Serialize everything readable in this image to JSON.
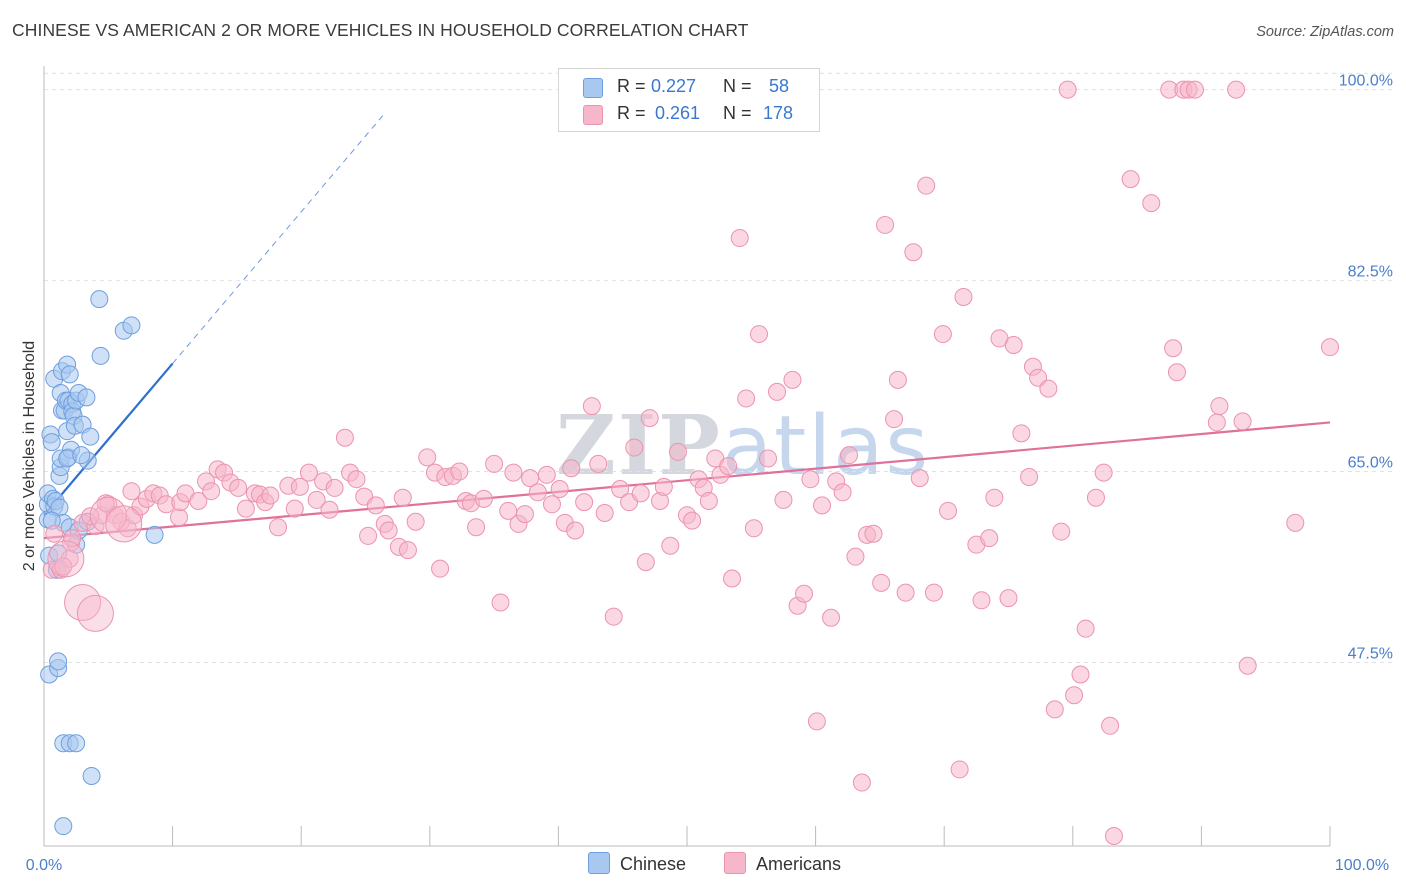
{
  "title": "CHINESE VS AMERICAN 2 OR MORE VEHICLES IN HOUSEHOLD CORRELATION CHART",
  "source": "Source: ZipAtlas.com",
  "watermark": {
    "zip": "ZIP",
    "atlas": "atlas"
  },
  "legend": {
    "rows": [
      {
        "r_label": "R =",
        "r_value": "0.227",
        "n_label": "N =",
        "n_value": "58",
        "color": "#a9c8f0"
      },
      {
        "r_label": "R =",
        "r_value": "0.261",
        "n_label": "N =",
        "n_value": "178",
        "color": "#f6b7cb"
      }
    ]
  },
  "bottom_legend": [
    {
      "label": "Chinese",
      "color": "#a9c8f0"
    },
    {
      "label": "Americans",
      "color": "#f6b7cb"
    }
  ],
  "chart_data": {
    "type": "scatter",
    "title": "CHINESE VS AMERICAN 2 OR MORE VEHICLES IN HOUSEHOLD CORRELATION CHART",
    "xlabel": "",
    "ylabel": "2 or more Vehicles in Household",
    "xlim": [
      0,
      100
    ],
    "ylim": [
      31.6,
      101.8
    ],
    "x_tick_labels": [
      "0.0%",
      "100.0%"
    ],
    "y_ticks": [
      47.5,
      65.0,
      82.5,
      100.0
    ],
    "y_tick_labels": [
      "47.5%",
      "65.0%",
      "82.5%",
      "100.0%"
    ],
    "grid": "horizontal dashed",
    "legend_position": "top-center",
    "series": [
      {
        "name": "Chinese",
        "color": "#a9c8f0",
        "edge": "#6e9fdf",
        "trend_color": "#2f6fce",
        "trend": {
          "x0": 0.0,
          "y0": 61.0,
          "x1": 10.0,
          "y1": 74.9,
          "dashed_to_x": 26.5
        },
        "points": [
          [
            0.3,
            62
          ],
          [
            0.3,
            60.6
          ],
          [
            0.3,
            63
          ],
          [
            0.4,
            57.3
          ],
          [
            0.4,
            46.4
          ],
          [
            0.5,
            68.4
          ],
          [
            0.6,
            67.7
          ],
          [
            0.7,
            62.5
          ],
          [
            0.8,
            61.8
          ],
          [
            0.8,
            73.5
          ],
          [
            0.9,
            62.3
          ],
          [
            1.0,
            56
          ],
          [
            1.1,
            57.5
          ],
          [
            1.1,
            47
          ],
          [
            1.1,
            47.6
          ],
          [
            1.2,
            61.7
          ],
          [
            1.2,
            64.6
          ],
          [
            1.3,
            72.2
          ],
          [
            1.3,
            65.4
          ],
          [
            1.3,
            66.2
          ],
          [
            1.4,
            70.6
          ],
          [
            1.4,
            74.2
          ],
          [
            1.5,
            40.1
          ],
          [
            1.5,
            32.5
          ],
          [
            1.5,
            60.3
          ],
          [
            1.6,
            70.6
          ],
          [
            1.7,
            71.5
          ],
          [
            1.8,
            68.7
          ],
          [
            1.8,
            74.8
          ],
          [
            1.9,
            66.3
          ],
          [
            1.9,
            71.5
          ],
          [
            2.0,
            40.1
          ],
          [
            2.0,
            59.9
          ],
          [
            2.0,
            73.9
          ],
          [
            2.1,
            67.0
          ],
          [
            2.2,
            71.2
          ],
          [
            2.2,
            70.5
          ],
          [
            2.3,
            70.1
          ],
          [
            2.4,
            69.2
          ],
          [
            2.5,
            71.5
          ],
          [
            2.5,
            40.1
          ],
          [
            2.5,
            58.3
          ],
          [
            2.7,
            59.6
          ],
          [
            2.7,
            72.2
          ],
          [
            3.0,
            69.3
          ],
          [
            3.3,
            71.8
          ],
          [
            3.4,
            66.0
          ],
          [
            3.4,
            60.4
          ],
          [
            3.6,
            68.2
          ],
          [
            3.7,
            37.1
          ],
          [
            4.3,
            80.8
          ],
          [
            4.4,
            75.6
          ],
          [
            6.2,
            77.9
          ],
          [
            6.8,
            78.4
          ],
          [
            8.6,
            59.2
          ],
          [
            1.8,
            66.2
          ],
          [
            0.6,
            60.5
          ],
          [
            2.9,
            66.5
          ]
        ]
      },
      {
        "name": "Americans",
        "color": "#f6b7cb",
        "edge": "#ec93ae",
        "trend_color": "#e0719a",
        "trend": {
          "x0": 0.0,
          "y0": 58.9,
          "x1": 100.0,
          "y1": 69.5
        },
        "points": [
          [
            0.6,
            56
          ],
          [
            1.3,
            56
          ],
          [
            2.0,
            57
          ],
          [
            2.1,
            58.5
          ],
          [
            3,
            60.3
          ],
          [
            4,
            60
          ],
          [
            4.5,
            61
          ],
          [
            5,
            62
          ],
          [
            5.5,
            61
          ],
          [
            6,
            60.4
          ],
          [
            6.5,
            59.8
          ],
          [
            7,
            61
          ],
          [
            7.5,
            61.8
          ],
          [
            8,
            62.5
          ],
          [
            8.5,
            63
          ],
          [
            9,
            62.8
          ],
          [
            9.5,
            62
          ],
          [
            10.5,
            60.8
          ],
          [
            10.6,
            62.2
          ],
          [
            11,
            63
          ],
          [
            12,
            62.3
          ],
          [
            12.6,
            64.1
          ],
          [
            13,
            63.2
          ],
          [
            13.5,
            65.2
          ],
          [
            14,
            64.9
          ],
          [
            14.5,
            64
          ],
          [
            15.1,
            63.5
          ],
          [
            15.7,
            61.6
          ],
          [
            16.4,
            63
          ],
          [
            16.8,
            62.9
          ],
          [
            17.2,
            62.2
          ],
          [
            17.6,
            62.8
          ],
          [
            18.2,
            59.9
          ],
          [
            19,
            63.7
          ],
          [
            19.5,
            61.6
          ],
          [
            19.9,
            63.6
          ],
          [
            20.6,
            64.9
          ],
          [
            21.2,
            62.4
          ],
          [
            21.7,
            64.1
          ],
          [
            22.2,
            61.5
          ],
          [
            22.6,
            63.5
          ],
          [
            23.4,
            68.1
          ],
          [
            23.8,
            64.9
          ],
          [
            24.3,
            64.3
          ],
          [
            24.9,
            62.7
          ],
          [
            25.2,
            59.1
          ],
          [
            25.8,
            61.9
          ],
          [
            26.5,
            60.2
          ],
          [
            26.8,
            59.6
          ],
          [
            27.6,
            58.1
          ],
          [
            27.9,
            62.6
          ],
          [
            28.3,
            57.8
          ],
          [
            28.9,
            60.4
          ],
          [
            29.8,
            66.3
          ],
          [
            30.4,
            64.9
          ],
          [
            30.8,
            56.1
          ],
          [
            31.2,
            64.5
          ],
          [
            31.8,
            64.6
          ],
          [
            32.3,
            65.0
          ],
          [
            32.8,
            62.3
          ],
          [
            33.2,
            62.1
          ],
          [
            33.6,
            59.9
          ],
          [
            34.2,
            62.5
          ],
          [
            35.0,
            65.7
          ],
          [
            35.5,
            53.0
          ],
          [
            36.1,
            61.4
          ],
          [
            36.5,
            64.9
          ],
          [
            36.9,
            60.2
          ],
          [
            37.4,
            61.1
          ],
          [
            37.8,
            64.4
          ],
          [
            38.4,
            63.1
          ],
          [
            39.1,
            64.7
          ],
          [
            39.5,
            62.0
          ],
          [
            40.1,
            63.4
          ],
          [
            40.5,
            60.3
          ],
          [
            41.0,
            65.3
          ],
          [
            41.3,
            59.6
          ],
          [
            42.0,
            62.2
          ],
          [
            42.6,
            71.0
          ],
          [
            43.1,
            65.7
          ],
          [
            43.6,
            61.2
          ],
          [
            44.3,
            51.7
          ],
          [
            44.8,
            63.4
          ],
          [
            45.5,
            62.2
          ],
          [
            45.9,
            67.2
          ],
          [
            46.4,
            63.0
          ],
          [
            46.8,
            56.7
          ],
          [
            47.1,
            69.9
          ],
          [
            47.9,
            62.3
          ],
          [
            48.2,
            63.6
          ],
          [
            48.7,
            58.2
          ],
          [
            49.3,
            66.8
          ],
          [
            50.0,
            61.0
          ],
          [
            50.4,
            60.5
          ],
          [
            50.9,
            64.3
          ],
          [
            51.3,
            63.5
          ],
          [
            51.7,
            62.3
          ],
          [
            52.2,
            66.2
          ],
          [
            52.6,
            64.7
          ],
          [
            53.2,
            65.5
          ],
          [
            53.5,
            55.2
          ],
          [
            54.1,
            86.4
          ],
          [
            54.6,
            71.7
          ],
          [
            55.2,
            59.8
          ],
          [
            55.6,
            77.6
          ],
          [
            56.3,
            66.2
          ],
          [
            57.0,
            72.3
          ],
          [
            57.5,
            62.4
          ],
          [
            58.2,
            73.4
          ],
          [
            58.6,
            52.7
          ],
          [
            59.1,
            53.8
          ],
          [
            59.6,
            64.3
          ],
          [
            60.1,
            42.1
          ],
          [
            60.5,
            61.9
          ],
          [
            61.2,
            51.6
          ],
          [
            61.6,
            64.1
          ],
          [
            62.1,
            63.1
          ],
          [
            62.6,
            66.5
          ],
          [
            63.1,
            57.2
          ],
          [
            63.6,
            36.5
          ],
          [
            64.0,
            59.2
          ],
          [
            64.5,
            59.3
          ],
          [
            65.1,
            54.8
          ],
          [
            65.4,
            87.6
          ],
          [
            66.1,
            69.8
          ],
          [
            66.4,
            73.4
          ],
          [
            67.0,
            53.9
          ],
          [
            67.6,
            85.1
          ],
          [
            68.1,
            64.4
          ],
          [
            68.6,
            91.2
          ],
          [
            69.2,
            53.9
          ],
          [
            69.9,
            77.6
          ],
          [
            70.3,
            61.4
          ],
          [
            71.2,
            37.7
          ],
          [
            71.5,
            81.0
          ],
          [
            72.5,
            58.3
          ],
          [
            72.9,
            53.2
          ],
          [
            73.5,
            58.9
          ],
          [
            73.9,
            62.6
          ],
          [
            74.3,
            77.2
          ],
          [
            75.0,
            53.4
          ],
          [
            75.4,
            76.6
          ],
          [
            76.0,
            68.5
          ],
          [
            76.6,
            64.5
          ],
          [
            76.9,
            74.6
          ],
          [
            77.3,
            73.6
          ],
          [
            78.1,
            72.6
          ],
          [
            78.6,
            43.2
          ],
          [
            79.1,
            59.5
          ],
          [
            79.6,
            100
          ],
          [
            80.1,
            44.5
          ],
          [
            80.6,
            46.4
          ],
          [
            81.0,
            50.6
          ],
          [
            81.8,
            62.6
          ],
          [
            82.4,
            64.9
          ],
          [
            82.9,
            41.7
          ],
          [
            83.2,
            31.6
          ],
          [
            84.5,
            91.8
          ],
          [
            86.1,
            89.6
          ],
          [
            87.5,
            100
          ],
          [
            87.8,
            76.3
          ],
          [
            88.1,
            74.1
          ],
          [
            88.6,
            100
          ],
          [
            89.0,
            100
          ],
          [
            89.5,
            100
          ],
          [
            91.2,
            69.5
          ],
          [
            91.4,
            71.0
          ],
          [
            92.7,
            100
          ],
          [
            93.2,
            69.6
          ],
          [
            93.6,
            47.2
          ],
          [
            97.3,
            60.3
          ],
          [
            100.0,
            76.4
          ],
          [
            0.8,
            59.3
          ],
          [
            1.5,
            56.3
          ],
          [
            2.2,
            58.9
          ],
          [
            3.6,
            60.9
          ],
          [
            4.8,
            62.1
          ],
          [
            6.8,
            63.2
          ]
        ],
        "large_points": [
          [
            1.7,
            57
          ],
          [
            3.0,
            53
          ],
          [
            4.0,
            52
          ],
          [
            5.0,
            61
          ],
          [
            6.2,
            60.2
          ]
        ]
      }
    ]
  }
}
